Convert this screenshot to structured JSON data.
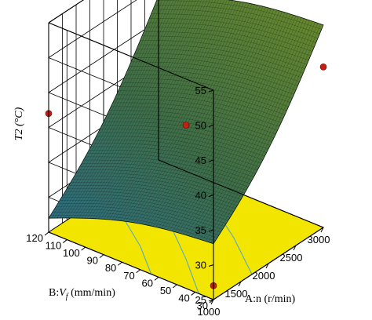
{
  "chart_data": {
    "type": "surface3d",
    "zlabel": "T2 (°C)",
    "xlabel": "A:n (r/min)",
    "ylabel_prefix": "B:",
    "ylabel_symbol": "V",
    "ylabel_sub": "f",
    "ylabel_suffix": " (mm/min)",
    "x_ticks": [
      "1000",
      "1500",
      "2000",
      "2500",
      "3000"
    ],
    "y_ticks": [
      "120",
      "110",
      "100",
      "90",
      "80",
      "70",
      "60",
      "50",
      "40",
      "30"
    ],
    "z_ticks": [
      "25",
      "30",
      "35",
      "40",
      "45",
      "50",
      "55"
    ],
    "xlim": [
      1000,
      3000
    ],
    "ylim": [
      30,
      120
    ],
    "zlim": [
      25,
      55
    ],
    "surface_corners": [
      {
        "n": 1000,
        "vf": 120,
        "t2": 27
      },
      {
        "n": 3000,
        "vf": 120,
        "t2": 48.5
      },
      {
        "n": 1000,
        "vf": 30,
        "t2": 33
      },
      {
        "n": 3000,
        "vf": 30,
        "t2": 54
      }
    ],
    "design_points": [
      {
        "n": 1000,
        "vf": 120,
        "t2": 42
      },
      {
        "n": 2000,
        "vf": 75,
        "t2": 40
      },
      {
        "n": 3000,
        "vf": 30,
        "t2": 48
      },
      {
        "n": 1000,
        "vf": 30,
        "t2": 27
      },
      {
        "n": 3000,
        "vf": 120,
        "t2": 39
      }
    ],
    "floor_color": "#f2e600",
    "surface_color_low": "#2b6f8a",
    "surface_color_high": "#6a8a2a",
    "point_color": "#c41f12",
    "contour_color": "#5aa8c8"
  }
}
